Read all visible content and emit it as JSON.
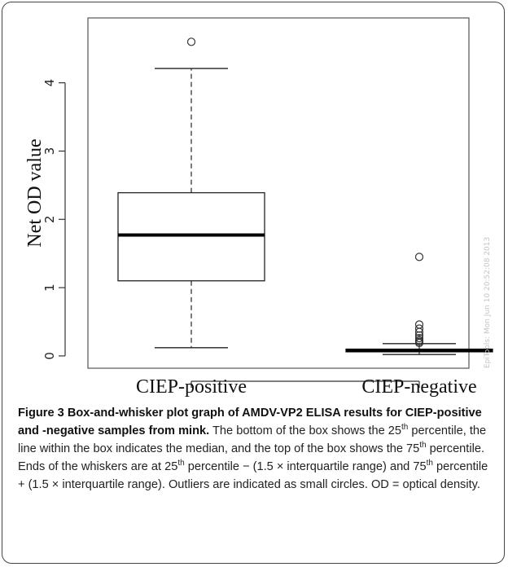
{
  "chart_data": {
    "type": "box",
    "ylabel": "Net OD value",
    "ylim": [
      -0.18,
      4.95
    ],
    "yticks": [
      0,
      1,
      2,
      3,
      4
    ],
    "categories": [
      "CIEP-positive",
      "CIEP-negative"
    ],
    "boxes": [
      {
        "category": "CIEP-positive",
        "whisker_low": 0.12,
        "q1": 1.1,
        "median": 1.77,
        "q3": 2.39,
        "whisker_high": 4.21,
        "outliers": [
          4.6
        ]
      },
      {
        "category": "CIEP-negative",
        "whisker_low": 0.02,
        "q1": 0.06,
        "median": 0.08,
        "q3": 0.1,
        "whisker_high": 0.18,
        "outliers": [
          0.19,
          0.21,
          0.23,
          0.26,
          0.3,
          0.35,
          0.4,
          0.46,
          1.45
        ]
      }
    ],
    "watermark": "EpiTools: Mon Jun 10 20:52:08 2013"
  },
  "caption": {
    "label": "Figure 3",
    "title": "Box-and-whisker plot graph of AMDV-VP2 ELISA results for CIEP-positive and -negative samples from mink.",
    "p1": "The bottom of the box shows the 25",
    "p2": " percentile, the line within the box indicates the median, and the top of the box shows the 75",
    "p3": " percentile. Ends of the whiskers are at 25",
    "p4": " percentile − (1.5 × interquartile range) and 75",
    "p5": " percentile + (1.5 × interquartile range). Outliers are indicated as small circles. OD = optical density.",
    "sup": "th"
  }
}
